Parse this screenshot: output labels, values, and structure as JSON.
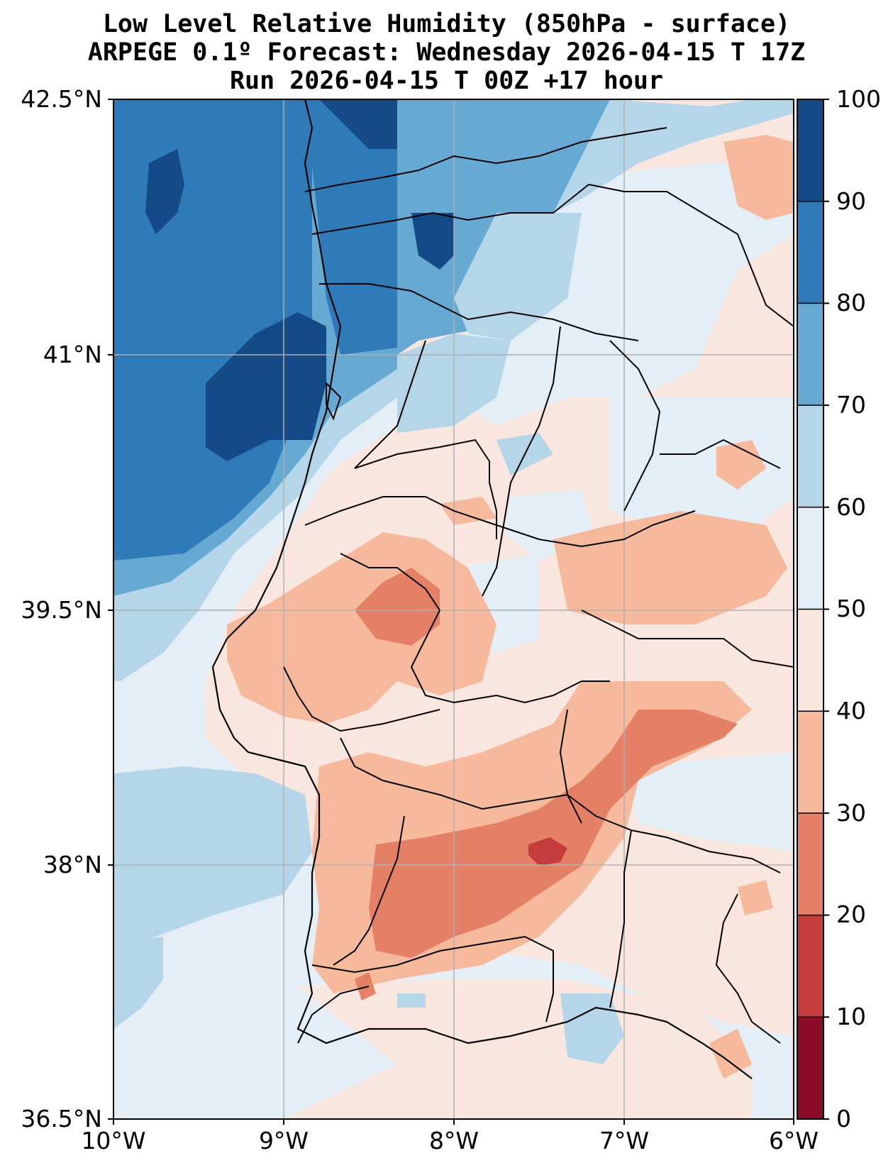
{
  "title": {
    "line1": "Low Level Relative Humidity (850hPa - surface)",
    "line2": "ARPEGE 0.1º Forecast: Wednesday 2026-04-15 T 17Z",
    "line3": "Run 2026-04-15 T 00Z +17 hour"
  },
  "axes": {
    "lat_labels": [
      "42.5°N",
      "41°N",
      "39.5°N",
      "38°N",
      "36.5°N"
    ],
    "lon_labels": [
      "10°W",
      "9°W",
      "8°W",
      "7°W",
      "6°W"
    ]
  },
  "colorbar": {
    "ticks": [
      "100",
      "90",
      "80",
      "70",
      "60",
      "50",
      "40",
      "30",
      "20",
      "10",
      "0"
    ],
    "colors": [
      "#144a87",
      "#2f7ab8",
      "#66aad3",
      "#b4d6e8",
      "#e4eef6",
      "#f9e6de",
      "#f6b99c",
      "#e48066",
      "#c43c3c",
      "#8a0c27"
    ]
  },
  "palette": {
    "sea_dark": "#144a87",
    "blue": "#2f7ab8",
    "mid_blue": "#66aad3",
    "light_blue": "#b4d6e8",
    "pale": "#e4eef6",
    "cream": "#f9e6de",
    "salmon": "#f6b99c",
    "orange": "#e48066",
    "red": "#c43c3c",
    "grid": "#b0b0b0",
    "border": "#000000"
  }
}
